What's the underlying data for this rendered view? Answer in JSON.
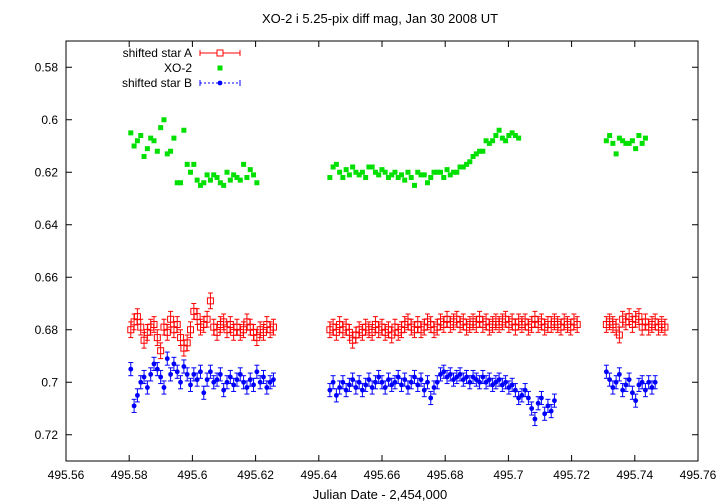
{
  "chart_data": {
    "type": "scatter",
    "title": "XO-2 i 5.25-pix diff mag, Jan 30 2008 UT",
    "xlabel": "Julian Date - 2,454,000",
    "ylabel": "",
    "xlim": [
      495.56,
      495.76
    ],
    "ylim": [
      0.73,
      0.57
    ],
    "y_inverted": true,
    "grid": false,
    "legend_position": "top-left",
    "x_ticks": [
      "495.56",
      "495.58",
      "495.6",
      "495.62",
      "495.64",
      "495.66",
      "495.68",
      "495.7",
      "495.72",
      "495.74",
      "495.76"
    ],
    "y_ticks": [
      "0.58",
      "0.6",
      "0.62",
      "0.64",
      "0.66",
      "0.68",
      "0.7",
      "0.72"
    ],
    "series": [
      {
        "name": "shifted star A",
        "color": "#ff0000",
        "marker": "open-square-errorbar",
        "error": 0.003,
        "segments": [
          {
            "x_start": 495.5805,
            "x_step": 0.00105,
            "values": [
              0.68,
              0.677,
              0.675,
              0.679,
              0.684,
              0.681,
              0.679,
              0.678,
              0.683,
              0.688,
              0.679,
              0.681,
              0.676,
              0.68,
              0.678,
              0.683,
              0.687,
              0.685,
              0.68,
              0.673,
              0.675,
              0.679,
              0.678,
              0.676,
              0.669,
              0.679,
              0.681,
              0.678,
              0.677,
              0.68,
              0.678,
              0.681,
              0.679,
              0.681,
              0.68,
              0.677,
              0.679,
              0.681,
              0.683,
              0.68,
              0.681,
              0.678,
              0.68,
              0.679
            ]
          },
          {
            "x_start": 495.6435,
            "x_step": 0.00103,
            "values": [
              0.68,
              0.679,
              0.681,
              0.678,
              0.68,
              0.679,
              0.681,
              0.684,
              0.682,
              0.68,
              0.681,
              0.679,
              0.68,
              0.681,
              0.678,
              0.68,
              0.679,
              0.681,
              0.68,
              0.682,
              0.679,
              0.681,
              0.68,
              0.678,
              0.677,
              0.679,
              0.68,
              0.678,
              0.68,
              0.679,
              0.677,
              0.678,
              0.68,
              0.679,
              0.677,
              0.678,
              0.676,
              0.678,
              0.677,
              0.676,
              0.678,
              0.677,
              0.679,
              0.678,
              0.677,
              0.678,
              0.676,
              0.678,
              0.677,
              0.679,
              0.678,
              0.677,
              0.678,
              0.677,
              0.676,
              0.678,
              0.677,
              0.679,
              0.677,
              0.678,
              0.677,
              0.679,
              0.678,
              0.676,
              0.678,
              0.677,
              0.679,
              0.678,
              0.678,
              0.677,
              0.678,
              0.679,
              0.677,
              0.678,
              0.679,
              0.677,
              0.678
            ]
          },
          {
            "x_start": 495.731,
            "x_step": 0.00103,
            "values": [
              0.678,
              0.677,
              0.678,
              0.679,
              0.682,
              0.676,
              0.677,
              0.675,
              0.678,
              0.676,
              0.675,
              0.679,
              0.677,
              0.679,
              0.678,
              0.677,
              0.679,
              0.678,
              0.679
            ]
          }
        ]
      },
      {
        "name": "XO-2",
        "color": "#00e000",
        "marker": "filled-square",
        "segments": [
          {
            "x_start": 495.5805,
            "x_step": 0.00105,
            "values": [
              0.605,
              0.61,
              0.608,
              0.606,
              0.614,
              0.611,
              0.607,
              0.608,
              0.612,
              0.603,
              0.6,
              0.613,
              0.612,
              0.607,
              0.624,
              0.624,
              0.604,
              0.617,
              0.62,
              0.617,
              0.623,
              0.625,
              0.624,
              0.621,
              0.623,
              0.621,
              0.622,
              0.624,
              0.625,
              0.62,
              0.623,
              0.621,
              0.622,
              0.623,
              0.617,
              0.622,
              0.619,
              0.621,
              0.624
            ]
          },
          {
            "x_start": 495.6435,
            "x_step": 0.00103,
            "values": [
              0.622,
              0.618,
              0.617,
              0.62,
              0.622,
              0.619,
              0.621,
              0.618,
              0.62,
              0.621,
              0.62,
              0.622,
              0.618,
              0.618,
              0.62,
              0.621,
              0.619,
              0.62,
              0.622,
              0.621,
              0.62,
              0.622,
              0.621,
              0.623,
              0.62,
              0.622,
              0.625,
              0.62,
              0.621,
              0.621,
              0.624,
              0.622,
              0.62,
              0.62,
              0.62,
              0.622,
              0.619,
              0.621,
              0.62,
              0.62,
              0.618,
              0.618,
              0.617,
              0.616,
              0.614,
              0.613,
              0.612,
              0.612,
              0.608,
              0.609,
              0.608,
              0.606,
              0.604,
              0.607,
              0.608,
              0.606,
              0.605,
              0.606,
              0.607
            ]
          },
          {
            "x_start": 495.731,
            "x_step": 0.00103,
            "values": [
              0.608,
              0.606,
              0.609,
              0.613,
              0.607,
              0.608,
              0.609,
              0.609,
              0.608,
              0.611,
              0.606,
              0.609,
              0.607
            ]
          }
        ]
      },
      {
        "name": "shifted star B",
        "color": "#0000ff",
        "marker": "filled-circle-errorbar",
        "error": 0.0025,
        "segments": [
          {
            "x_start": 495.5805,
            "x_step": 0.00105,
            "values": [
              0.695,
              0.709,
              0.705,
              0.7,
              0.698,
              0.702,
              0.697,
              0.693,
              0.695,
              0.698,
              0.702,
              0.691,
              0.697,
              0.693,
              0.696,
              0.7,
              0.694,
              0.697,
              0.701,
              0.697,
              0.699,
              0.696,
              0.704,
              0.699,
              0.696,
              0.7,
              0.699,
              0.697,
              0.703,
              0.7,
              0.698,
              0.701,
              0.699,
              0.697,
              0.7,
              0.702,
              0.699,
              0.701,
              0.696,
              0.7,
              0.698,
              0.702,
              0.7,
              0.699
            ]
          },
          {
            "x_start": 495.6435,
            "x_step": 0.00103,
            "values": [
              0.703,
              0.7,
              0.705,
              0.702,
              0.7,
              0.703,
              0.701,
              0.699,
              0.702,
              0.7,
              0.703,
              0.701,
              0.699,
              0.702,
              0.7,
              0.698,
              0.7,
              0.702,
              0.699,
              0.701,
              0.7,
              0.698,
              0.701,
              0.699,
              0.702,
              0.7,
              0.698,
              0.701,
              0.699,
              0.703,
              0.7,
              0.706,
              0.702,
              0.7,
              0.697,
              0.696,
              0.698,
              0.697,
              0.699,
              0.698,
              0.697,
              0.699,
              0.698,
              0.7,
              0.698,
              0.699,
              0.7,
              0.698,
              0.7,
              0.699,
              0.701,
              0.7,
              0.699,
              0.701,
              0.7,
              0.702,
              0.701,
              0.703,
              0.706,
              0.705,
              0.703,
              0.706,
              0.71,
              0.714,
              0.708,
              0.706,
              0.712,
              0.709,
              0.711,
              0.707
            ]
          },
          {
            "x_start": 495.731,
            "x_step": 0.00103,
            "values": [
              0.696,
              0.699,
              0.702,
              0.7,
              0.697,
              0.703,
              0.701,
              0.699,
              0.704,
              0.707,
              0.701,
              0.7,
              0.703,
              0.7,
              0.702,
              0.7
            ]
          }
        ]
      }
    ]
  }
}
